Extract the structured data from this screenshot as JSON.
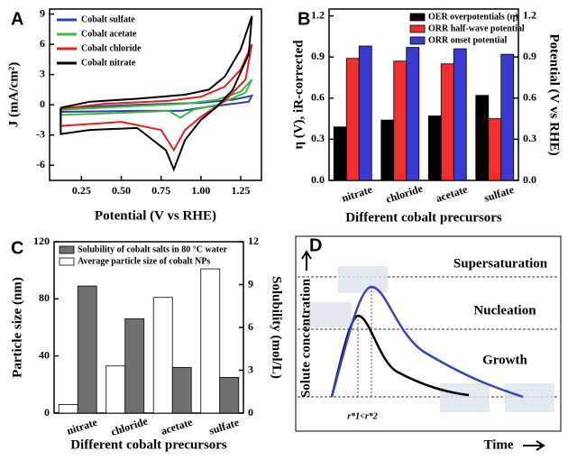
{
  "chart_data": [
    {
      "type": "line",
      "panel_label": "A",
      "xlabel": "Potential (V vs RHE)",
      "ylabel": "J (mA/cm²)",
      "xlim": [
        0.05,
        1.38
      ],
      "xticks": [
        0.25,
        {
          "value": 0.5,
          "label": "0.50"
        },
        0.75,
        {
          "value": 1,
          "label": "1.00"
        },
        1.25
      ],
      "ylim": [
        -7.5,
        9.5
      ],
      "yticks": [
        -6,
        -3,
        0,
        3,
        6,
        9
      ],
      "legend": "upper left",
      "series": [
        {
          "name": "Cobalt sulfate",
          "color": "#2a3fb0",
          "x": [
            0.12,
            0.6,
            1.0,
            1.2,
            1.32,
            1.3,
            1.0,
            0.88,
            0.6,
            0.12,
            0.12
          ],
          "values": [
            -0.3,
            0,
            0.2,
            0.5,
            0.9,
            0.3,
            -0.3,
            -0.6,
            -0.6,
            -0.7,
            -0.3
          ]
        },
        {
          "name": "Cobalt acetate",
          "color": "#3dbb3d",
          "x": [
            0.12,
            0.5,
            0.9,
            1.1,
            1.25,
            1.32,
            1.28,
            1.1,
            0.95,
            0.87,
            0.8,
            0.5,
            0.12,
            0.12
          ],
          "values": [
            -0.5,
            -0.2,
            0.1,
            0.5,
            1.3,
            2.5,
            1.2,
            0,
            -0.5,
            -1.3,
            -0.6,
            -0.8,
            -1.0,
            -0.5
          ]
        },
        {
          "name": "Cobalt chloride",
          "color": "#e02020",
          "x": [
            0.12,
            0.4,
            0.8,
            1.0,
            1.15,
            1.25,
            1.32,
            1.28,
            1.15,
            1.0,
            0.9,
            0.83,
            0.75,
            0.5,
            0.12,
            0.12
          ],
          "values": [
            -0.4,
            0.1,
            0.4,
            0.8,
            1.8,
            3.5,
            6.0,
            2.5,
            0.4,
            -1.2,
            -2.5,
            -4.5,
            -2.5,
            -1.7,
            -2.1,
            -0.4
          ]
        },
        {
          "name": "Cobalt nitrate",
          "color": "#000000",
          "x": [
            0.12,
            0.3,
            0.6,
            0.9,
            1.05,
            1.15,
            1.25,
            1.32,
            1.3,
            1.2,
            1.1,
            1.0,
            0.9,
            0.83,
            0.78,
            0.6,
            0.3,
            0.12,
            0.12
          ],
          "values": [
            -0.3,
            0.3,
            0.6,
            1.0,
            1.5,
            2.8,
            5.5,
            8.8,
            5.0,
            1.5,
            -0.2,
            -1.5,
            -3.5,
            -6.4,
            -4.5,
            -2.3,
            -2.5,
            -2.9,
            -0.3
          ]
        }
      ]
    },
    {
      "type": "bar",
      "panel_label": "B",
      "xlabel": "Different cobalt precursors",
      "ylabel": "η (V), iR-corrected",
      "y2label": "Potential (V vs RHE)",
      "categories": [
        "nitrate",
        "chloride",
        "acetate",
        "sulfate"
      ],
      "ylim": [
        0,
        1.25
      ],
      "yticks": [
        {
          "value": 0,
          "label": "0.0"
        },
        0.3,
        0.6,
        0.9,
        1.2
      ],
      "y2lim": [
        0,
        1.25
      ],
      "y2ticks": [
        {
          "value": 0,
          "label": "0.0"
        },
        0.3,
        0.6,
        0.9,
        1.2
      ],
      "legend": "upper right",
      "series": [
        {
          "name": "OER overpotentials (η)",
          "color": "#000000",
          "values": [
            0.39,
            0.44,
            0.47,
            0.62
          ]
        },
        {
          "name": "ORR half-wave potential",
          "color": "#f03030",
          "values": [
            0.89,
            0.87,
            0.85,
            0.45
          ],
          "axis": "y2"
        },
        {
          "name": "ORR onset potential",
          "color": "#3a3ad0",
          "values": [
            0.98,
            0.97,
            0.96,
            0.92
          ],
          "axis": "y2"
        }
      ]
    },
    {
      "type": "bar",
      "panel_label": "C",
      "xlabel": "Different cobalt precursors",
      "ylabel": "Particle size (nm)",
      "y2label": "Solubility (mol/L)",
      "categories": [
        "nitrate",
        "chloride",
        "acetate",
        "sulfate"
      ],
      "ylim": [
        0,
        120
      ],
      "yticks": [
        0,
        40,
        80,
        120
      ],
      "y2lim": [
        0,
        12
      ],
      "y2ticks": [
        0,
        3,
        6,
        9,
        12
      ],
      "legend": "upper left",
      "series": [
        {
          "name": "Average particle size of cobalt NPs",
          "color": "#ffffff",
          "values": [
            6,
            33,
            81,
            101
          ]
        },
        {
          "name": "Solubility of cobalt salts in 80 °C water",
          "color": "#707070",
          "values": [
            8.9,
            6.6,
            3.2,
            2.5
          ],
          "axis": "y2"
        }
      ]
    }
  ],
  "diagram": {
    "panel_label": "D",
    "ylabel": "Solute concentration",
    "xlabel": "Time",
    "regions": [
      "Supersaturation",
      "Nucleation",
      "Growth"
    ],
    "radius_note": "r*1<r*2"
  }
}
